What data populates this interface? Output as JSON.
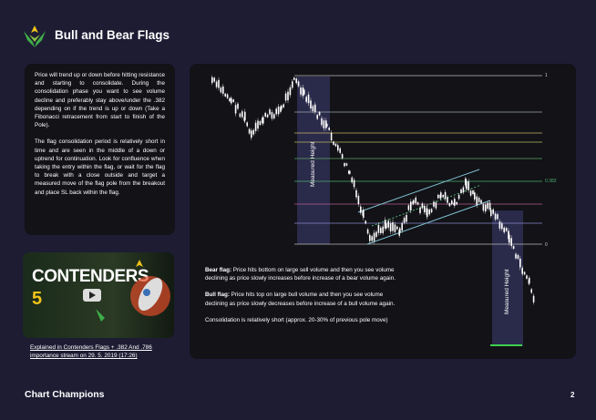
{
  "header": {
    "title": "Bull and Bear Flags"
  },
  "left_panel": {
    "paragraphs": [
      "Price will trend up or down before hitting resistance and starting to consolidate. During the consolidation phase you want to see volume decline and preferably stay above/under the .382 depending on if the trend is up or down (Take a Fibonacci retracement from start to finish of the Pole).",
      "The flag consolidation period is relatively short in time and are seen in the middle of a down or uptrend for continuation. Look for confluence when taking the entry within the flag, or wait for the flag to break with a close outside and target a measured move of the flag pole from the breakout and place SL back within the flag."
    ]
  },
  "video": {
    "title": "CONTENDERS",
    "number": "5",
    "caption": "Explained in Contenders Flags + .382 And .786 importance stream on 29. 5. 2019 (17:26)"
  },
  "diagram": {
    "fib_labels": [
      "1",
      "0.382",
      "0"
    ],
    "measured_height_labels": [
      "Measured Height",
      "Measured Height"
    ]
  },
  "notes": [
    {
      "label": "Bear flag:",
      "text": " Price hits bottom on large sell volume and then you see volume declining as price slowly increases before increase of a bear volume again."
    },
    {
      "label": "Bull flag:",
      "text": " Price hits top on large bull volume and then you see volume declining as price slowly decreases before increase of a bull volume again."
    },
    {
      "label": "",
      "text": "Consolidation is relatively short (approx. 20-30% of previous pole move)"
    }
  ],
  "footer": {
    "brand": "Chart Champions",
    "page": "2"
  }
}
